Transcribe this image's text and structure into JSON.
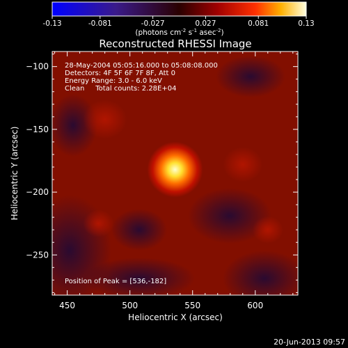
{
  "colorbar": {
    "ticks": [
      "-0.13",
      "-0.081",
      "-0.027",
      "0.027",
      "0.081",
      "0.13"
    ],
    "unit_label": "(photons cm",
    "unit_exp1": "-2",
    "unit_mid": " s",
    "unit_exp2": "-1",
    "unit_mid2": " asec",
    "unit_exp3": "-2",
    "unit_close": ")"
  },
  "chart_data": {
    "type": "heatmap",
    "title": "Reconstructed RHESSI Image",
    "xlabel": "Heliocentric X (arcsec)",
    "ylabel": "Heliocentric Y (arcsec)",
    "xlim": [
      438,
      634
    ],
    "ylim": [
      -282,
      -88
    ],
    "xticks": [
      450,
      500,
      550,
      600
    ],
    "yticks": [
      -100,
      -150,
      -200,
      -250
    ],
    "info_lines": [
      "28-May-2004 05:05:16.000 to 05:08:08.000",
      "Detectors: 4F 5F 6F 7F 8F, Att 0",
      "Energy Range: 3.0 - 6.0 keV",
      "Clean     Total counts: 2.28E+04"
    ],
    "peak_label": "Position of Peak = [536,-182]",
    "peak": [
      536,
      -182
    ],
    "peak_value": 0.13,
    "color_range": [
      -0.13,
      0.13
    ],
    "secondary_sources": [
      {
        "x": 480,
        "y": -142,
        "value": 0.05
      },
      {
        "x": 590,
        "y": -178,
        "value": 0.045
      },
      {
        "x": 475,
        "y": -225,
        "value": 0.035
      },
      {
        "x": 610,
        "y": -230,
        "value": 0.035
      }
    ]
  },
  "footer_date": "20-Jun-2013 09:57"
}
